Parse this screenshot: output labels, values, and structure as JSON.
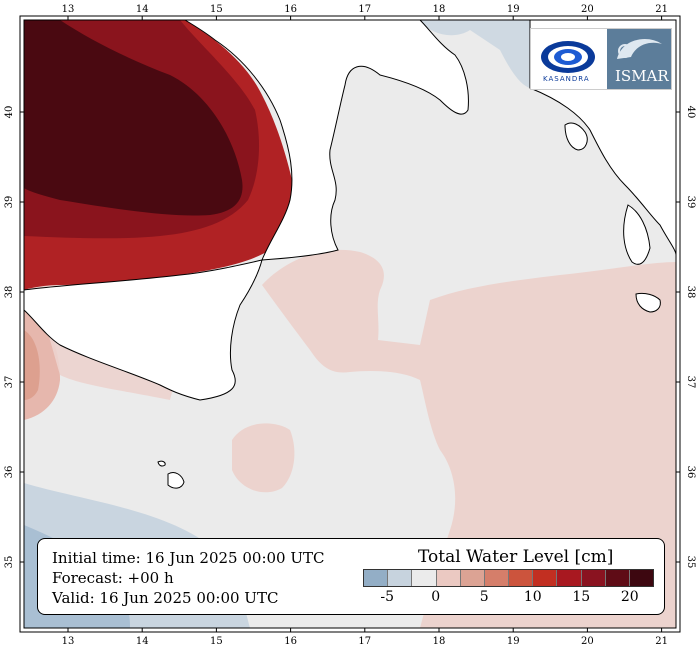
{
  "map": {
    "x_ticks": [
      "13",
      "14",
      "15",
      "16",
      "17",
      "18",
      "19",
      "20",
      "21"
    ],
    "y_ticks": [
      "35",
      "36",
      "37",
      "38",
      "39",
      "40"
    ]
  },
  "info": {
    "initial_time": "Initial time: 16 Jun 2025 00:00 UTC",
    "forecast": "Forecast: +00 h",
    "valid": "Valid: 16 Jun 2025 00:00 UTC"
  },
  "legend": {
    "title": "Total Water Level [cm]",
    "tick_labels": [
      "-5",
      "0",
      "5",
      "10",
      "15",
      "20"
    ],
    "colors": [
      "#93aec6",
      "#c7d3de",
      "#ebebeb",
      "#ebc9c2",
      "#dca394",
      "#d57e6a",
      "#cc543d",
      "#c22f21",
      "#a81820",
      "#8a1320",
      "#5f0c16",
      "#3d0710"
    ]
  },
  "logos": {
    "left_text": "KASANDRA",
    "right_text": "ISMAR"
  }
}
